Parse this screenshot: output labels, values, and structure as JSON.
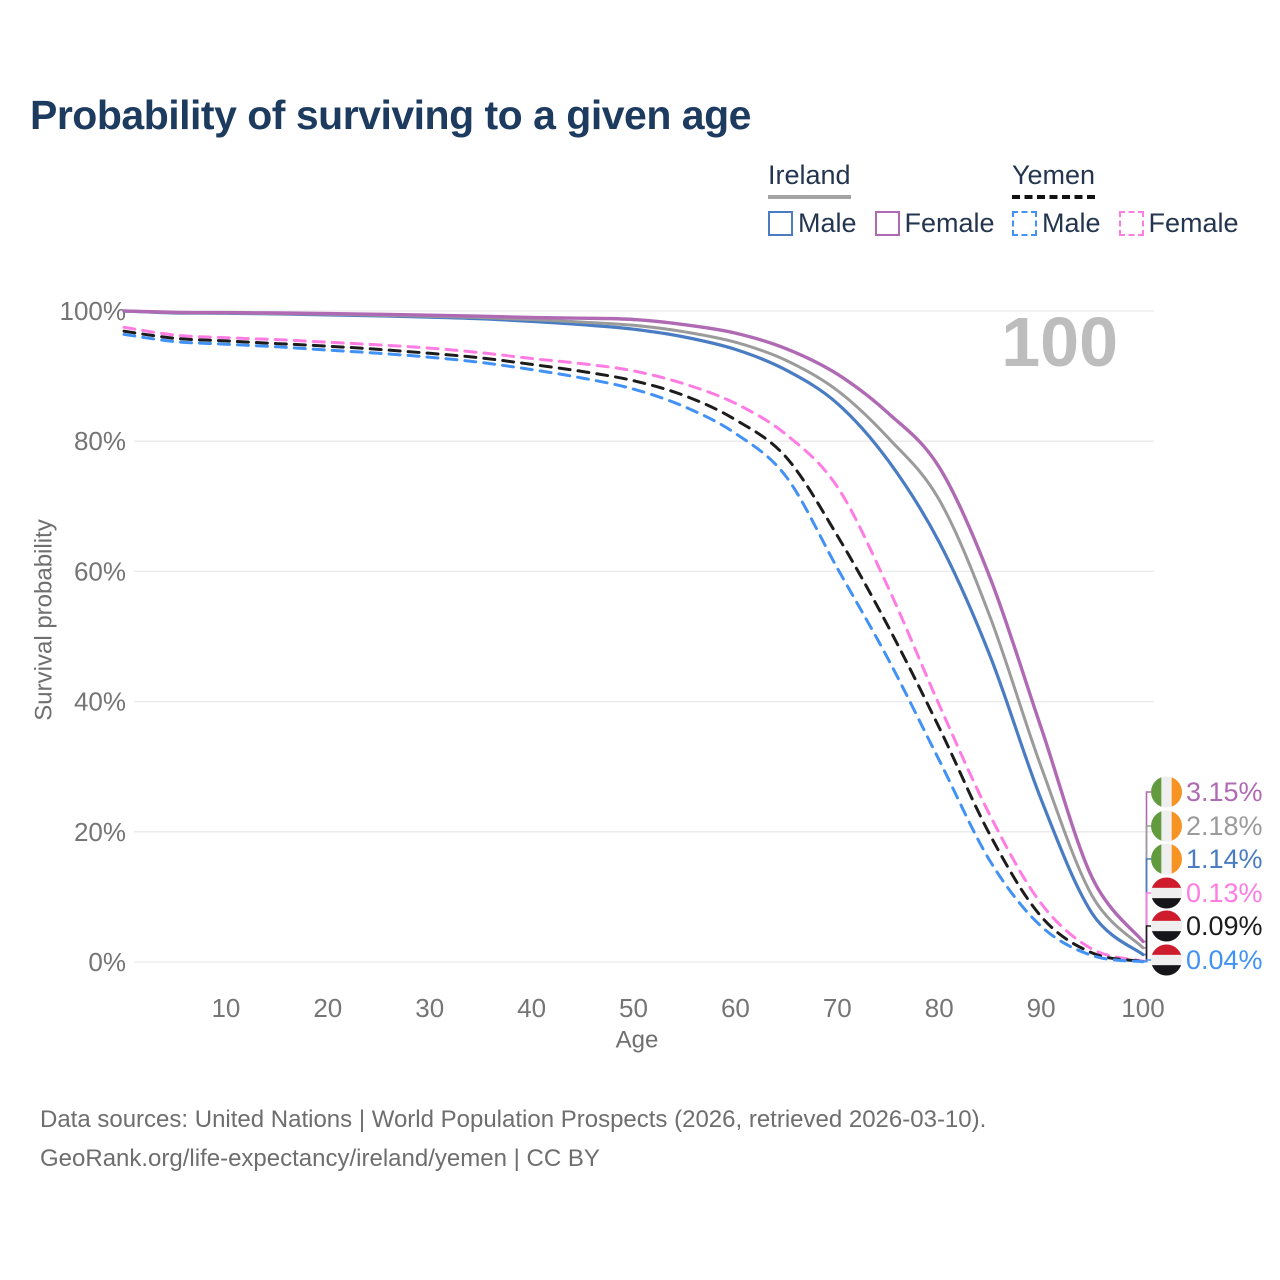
{
  "title": "Probability of surviving to a given age",
  "age_counter": "100",
  "legend": {
    "groups": [
      {
        "country": "Ireland",
        "line_style": "solid",
        "underline_color": "#a3a3a3",
        "items": [
          {
            "label": "Male",
            "color": "#4a7cc3",
            "dash": false
          },
          {
            "label": "Female",
            "color": "#b06ab3",
            "dash": false
          }
        ]
      },
      {
        "country": "Yemen",
        "line_style": "dashed",
        "underline_color": "#111111",
        "items": [
          {
            "label": "Male",
            "color": "#4292f5",
            "dash": true
          },
          {
            "label": "Female",
            "color": "#ff7ce3",
            "dash": true
          }
        ]
      }
    ]
  },
  "footer": {
    "line1": "Data sources: United Nations | World Population Prospects (2026, retrieved 2026-03-10).",
    "line2": "GeoRank.org/life-expectancy/ireland/yemen | CC BY"
  },
  "flags": {
    "ireland": {
      "type": "vertical",
      "colors": [
        "#619b3e",
        "#efefef",
        "#f79322"
      ]
    },
    "yemen": {
      "type": "horizontal",
      "colors": [
        "#ce1c2c",
        "#efefef",
        "#15151a"
      ]
    }
  },
  "chart_data": {
    "type": "line",
    "xlabel": "Age",
    "ylabel": "Survival probability",
    "xlim": [
      0,
      100
    ],
    "ylim": [
      0,
      100
    ],
    "x_ticks": [
      10,
      20,
      30,
      40,
      50,
      60,
      70,
      80,
      90,
      100
    ],
    "y_ticks": [
      0,
      20,
      40,
      60,
      80,
      100
    ],
    "y_tick_suffix": "%",
    "grid": "horizontal",
    "legend_position": "top-right",
    "age_counter_annotation": "100",
    "x": [
      0,
      5,
      10,
      15,
      20,
      25,
      30,
      35,
      40,
      45,
      50,
      55,
      60,
      65,
      70,
      75,
      80,
      85,
      90,
      95,
      100
    ],
    "series": [
      {
        "name": "Ireland Male",
        "country": "Ireland",
        "sex": "Male",
        "color": "#4a7cc3",
        "dash": false,
        "width": 3.2,
        "flag": "ireland",
        "end_label": "1.14%",
        "end_value": 1.14,
        "values": [
          100,
          99.7,
          99.65,
          99.55,
          99.4,
          99.25,
          99.05,
          98.8,
          98.4,
          97.9,
          97.2,
          96.0,
          94.1,
          90.9,
          85.8,
          77.0,
          64.5,
          47.0,
          25.0,
          7.5,
          1.14
        ]
      },
      {
        "name": "Ireland Both sexes",
        "country": "Ireland",
        "sex": "Both",
        "color": "#9b9b9b",
        "dash": false,
        "width": 3.0,
        "flag": "ireland",
        "end_label": "2.18%",
        "end_value": 2.18,
        "values": [
          100,
          99.75,
          99.7,
          99.6,
          99.5,
          99.35,
          99.2,
          99.0,
          98.7,
          98.3,
          97.8,
          96.8,
          95.2,
          92.4,
          87.8,
          80.5,
          71.0,
          53.0,
          30.0,
          10.2,
          2.18
        ]
      },
      {
        "name": "Ireland Female",
        "country": "Ireland",
        "sex": "Female",
        "color": "#b06ab3",
        "dash": false,
        "width": 3.4,
        "flag": "ireland",
        "end_label": "3.15%",
        "end_value": 3.15,
        "values": [
          100,
          99.8,
          99.75,
          99.7,
          99.6,
          99.5,
          99.35,
          99.2,
          99.0,
          98.9,
          98.7,
          97.9,
          96.6,
          94.2,
          90.3,
          84.3,
          76.0,
          59.0,
          36.0,
          13.0,
          3.15
        ]
      },
      {
        "name": "Yemen Female",
        "country": "Yemen",
        "sex": "Female",
        "color": "#ff7ce3",
        "dash": true,
        "width": 3.0,
        "flag": "yemen",
        "end_label": "0.13%",
        "end_value": 0.13,
        "values": [
          97.5,
          96.3,
          95.9,
          95.6,
          95.2,
          94.8,
          94.3,
          93.6,
          92.7,
          91.9,
          90.8,
          88.8,
          85.8,
          81.0,
          73.0,
          57.5,
          39.5,
          22.5,
          9.0,
          2.0,
          0.13
        ]
      },
      {
        "name": "Yemen Both sexes",
        "country": "Yemen",
        "sex": "Both",
        "color": "#1c1c1c",
        "dash": true,
        "width": 3.0,
        "flag": "yemen",
        "end_label": "0.09%",
        "end_value": 0.09,
        "values": [
          96.9,
          95.8,
          95.4,
          95.0,
          94.6,
          94.1,
          93.5,
          92.8,
          91.8,
          90.7,
          89.3,
          87.0,
          83.3,
          77.5,
          65.5,
          51.5,
          36.0,
          19.5,
          7.0,
          1.4,
          0.09
        ]
      },
      {
        "name": "Yemen Male",
        "country": "Yemen",
        "sex": "Male",
        "color": "#4292f5",
        "dash": true,
        "width": 3.0,
        "flag": "yemen",
        "end_label": "0.04%",
        "end_value": 0.04,
        "values": [
          96.4,
          95.3,
          94.9,
          94.5,
          94.0,
          93.5,
          92.9,
          92.1,
          91.0,
          89.7,
          88.0,
          85.3,
          81.2,
          74.5,
          60.5,
          46.5,
          31.0,
          15.5,
          5.5,
          1.0,
          0.04
        ]
      }
    ],
    "end_label_order": [
      "Ireland Female",
      "Ireland Both sexes",
      "Ireland Male",
      "Yemen Female",
      "Yemen Both sexes",
      "Yemen Male"
    ]
  }
}
